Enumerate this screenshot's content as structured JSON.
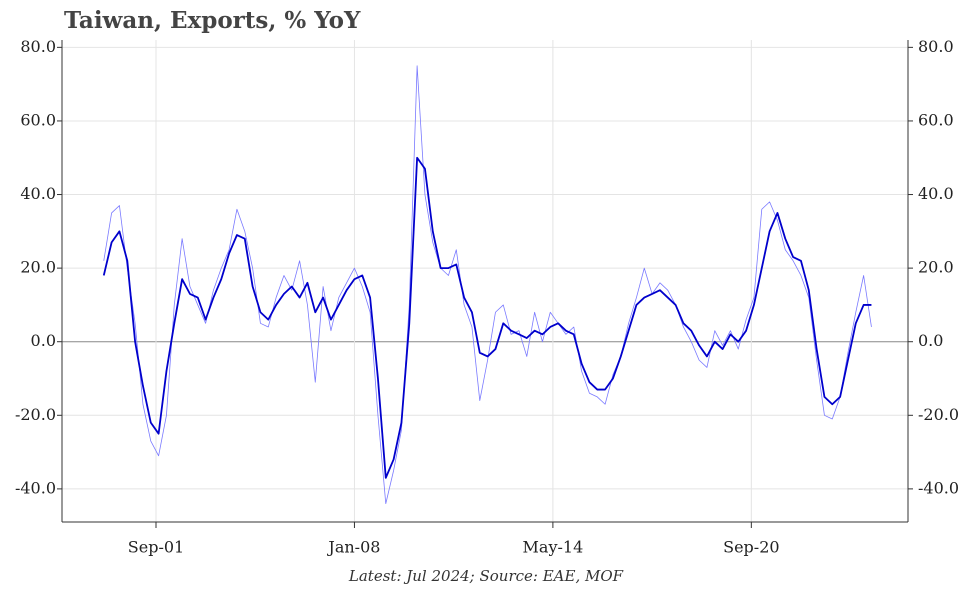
{
  "chart_data": {
    "type": "line",
    "title": "Taiwan, Exports, % YoY",
    "footnote": "Latest: Jul 2024; Source: EAE, MOF",
    "x": [
      "2000-01",
      "2000-04",
      "2000-07",
      "2000-10",
      "2001-01",
      "2001-04",
      "2001-07",
      "2001-10",
      "2002-01",
      "2002-04",
      "2002-07",
      "2002-10",
      "2003-01",
      "2003-04",
      "2003-07",
      "2003-10",
      "2004-01",
      "2004-04",
      "2004-07",
      "2004-10",
      "2005-01",
      "2005-04",
      "2005-07",
      "2005-10",
      "2006-01",
      "2006-04",
      "2006-07",
      "2006-10",
      "2007-01",
      "2007-04",
      "2007-07",
      "2007-10",
      "2008-01",
      "2008-04",
      "2008-07",
      "2008-10",
      "2009-01",
      "2009-04",
      "2009-07",
      "2009-10",
      "2010-01",
      "2010-04",
      "2010-07",
      "2010-10",
      "2011-01",
      "2011-04",
      "2011-07",
      "2011-10",
      "2012-01",
      "2012-04",
      "2012-07",
      "2012-10",
      "2013-01",
      "2013-04",
      "2013-07",
      "2013-10",
      "2014-01",
      "2014-04",
      "2014-07",
      "2014-10",
      "2015-01",
      "2015-04",
      "2015-07",
      "2015-10",
      "2016-01",
      "2016-04",
      "2016-07",
      "2016-10",
      "2017-01",
      "2017-04",
      "2017-07",
      "2017-10",
      "2018-01",
      "2018-04",
      "2018-07",
      "2018-10",
      "2019-01",
      "2019-04",
      "2019-07",
      "2019-10",
      "2020-01",
      "2020-04",
      "2020-07",
      "2020-10",
      "2021-01",
      "2021-04",
      "2021-07",
      "2021-10",
      "2022-01",
      "2022-04",
      "2022-07",
      "2022-10",
      "2023-01",
      "2023-04",
      "2023-07",
      "2023-10",
      "2024-01",
      "2024-04",
      "2024-07"
    ],
    "series": [
      {
        "color": "#7a7aff",
        "width": 0.8,
        "values": [
          22,
          35,
          37,
          20,
          5,
          -17,
          -27,
          -31,
          -20,
          10,
          28,
          15,
          10,
          5,
          14,
          20,
          25,
          36,
          30,
          20,
          5,
          4,
          12,
          18,
          14,
          22,
          10,
          -11,
          15,
          3,
          12,
          16,
          20,
          15,
          8,
          -20,
          -44,
          -35,
          -24,
          10,
          75,
          40,
          27,
          20,
          18,
          25,
          10,
          4,
          -16,
          -5,
          8,
          10,
          2,
          3,
          -4,
          8,
          0,
          8,
          5,
          2,
          4,
          -8,
          -14,
          -15,
          -17,
          -9,
          -4,
          5,
          12,
          20,
          13,
          16,
          14,
          10,
          4,
          0,
          -5,
          -7,
          3,
          -1,
          3,
          -2,
          6,
          12,
          36,
          38,
          33,
          25,
          22,
          18,
          12,
          -5,
          -20,
          -21,
          -15,
          -3,
          8,
          18,
          4
        ]
      },
      {
        "color": "#0000cc",
        "width": 1.8,
        "values": [
          18,
          27,
          30,
          22,
          0,
          -12,
          -22,
          -25,
          -8,
          5,
          17,
          13,
          12,
          6,
          12,
          17,
          24,
          29,
          28,
          15,
          8,
          6,
          10,
          13,
          15,
          12,
          16,
          8,
          12,
          6,
          10,
          14,
          17,
          18,
          12,
          -10,
          -37,
          -32,
          -22,
          5,
          50,
          47,
          30,
          20,
          20,
          21,
          12,
          8,
          -3,
          -4,
          -2,
          5,
          3,
          2,
          1,
          3,
          2,
          4,
          5,
          3,
          2,
          -6,
          -11,
          -13,
          -13,
          -10,
          -4,
          3,
          10,
          12,
          13,
          14,
          12,
          10,
          5,
          3,
          -1,
          -4,
          0,
          -2,
          2,
          0,
          3,
          10,
          20,
          30,
          35,
          28,
          23,
          22,
          14,
          -2,
          -15,
          -17,
          -15,
          -5,
          5,
          10,
          10
        ]
      }
    ],
    "xlim": [
      "1998-09",
      "2025-09"
    ],
    "xticks": [
      {
        "value": "2001-09",
        "label": "Sep-01"
      },
      {
        "value": "2008-01",
        "label": "Jan-08"
      },
      {
        "value": "2014-05",
        "label": "May-14"
      },
      {
        "value": "2020-09",
        "label": "Sep-20"
      }
    ],
    "ylim": [
      -49,
      82
    ],
    "yticks": [
      {
        "value": -40,
        "label": "-40.0"
      },
      {
        "value": -20,
        "label": "-20.0"
      },
      {
        "value": 0,
        "label": "0.0"
      },
      {
        "value": 20,
        "label": "20.0"
      },
      {
        "value": 40,
        "label": "40.0"
      },
      {
        "value": 60,
        "label": "60.0"
      },
      {
        "value": 80,
        "label": "80.0"
      }
    ],
    "grid": true,
    "right_axis": true
  }
}
